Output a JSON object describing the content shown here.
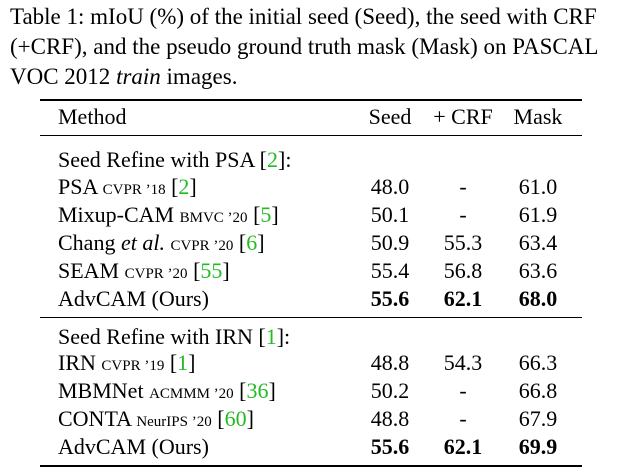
{
  "caption": {
    "prefix": "Table 1: mIoU (%) of the initial seed (Seed), the seed with CRF (+CRF), and the pseudo ground truth mask (Mask) on PASCAL VOC 2012 ",
    "italic": "train",
    "suffix": " images."
  },
  "table": {
    "headers": {
      "method": "Method",
      "seed": "Seed",
      "crf": "+ CRF",
      "mask": "Mask"
    },
    "sections": [
      {
        "title": "Seed Refine with PSA",
        "cite": "2",
        "rows": [
          {
            "name": "PSA",
            "venue": "CVPR ’18",
            "cite": "2",
            "seed": "48.0",
            "crf": "-",
            "mask": "61.0"
          },
          {
            "name": "Mixup-CAM",
            "venue": "BMVC ’20",
            "cite": "5",
            "seed": "50.1",
            "crf": "-",
            "mask": "61.9"
          },
          {
            "name": "Chang",
            "name_italic": "et al.",
            "venue": "CVPR ’20",
            "cite": "6",
            "seed": "50.9",
            "crf": "55.3",
            "mask": "63.4"
          },
          {
            "name": "SEAM",
            "venue": "CVPR ’20",
            "cite": "55",
            "seed": "55.4",
            "crf": "56.8",
            "mask": "63.6"
          },
          {
            "name": "AdvCAM (Ours)",
            "seed": "55.6",
            "crf": "62.1",
            "mask": "68.0",
            "bold": true
          }
        ]
      },
      {
        "title": "Seed Refine with IRN",
        "cite": "1",
        "rows": [
          {
            "name": "IRN",
            "venue": "CVPR ’19",
            "cite": "1",
            "seed": "48.8",
            "crf": "54.3",
            "mask": "66.3"
          },
          {
            "name": "MBMNet",
            "venue": "ACMMM ’20",
            "cite": "36",
            "seed": "50.2",
            "crf": "-",
            "mask": "66.8"
          },
          {
            "name": "CONTA",
            "venue": "NeurIPS ’20",
            "cite": "60",
            "seed": "48.8",
            "crf": "-",
            "mask": "67.9"
          },
          {
            "name": "AdvCAM (Ours)",
            "seed": "55.6",
            "crf": "62.1",
            "mask": "69.9",
            "bold": true
          }
        ]
      }
    ]
  }
}
